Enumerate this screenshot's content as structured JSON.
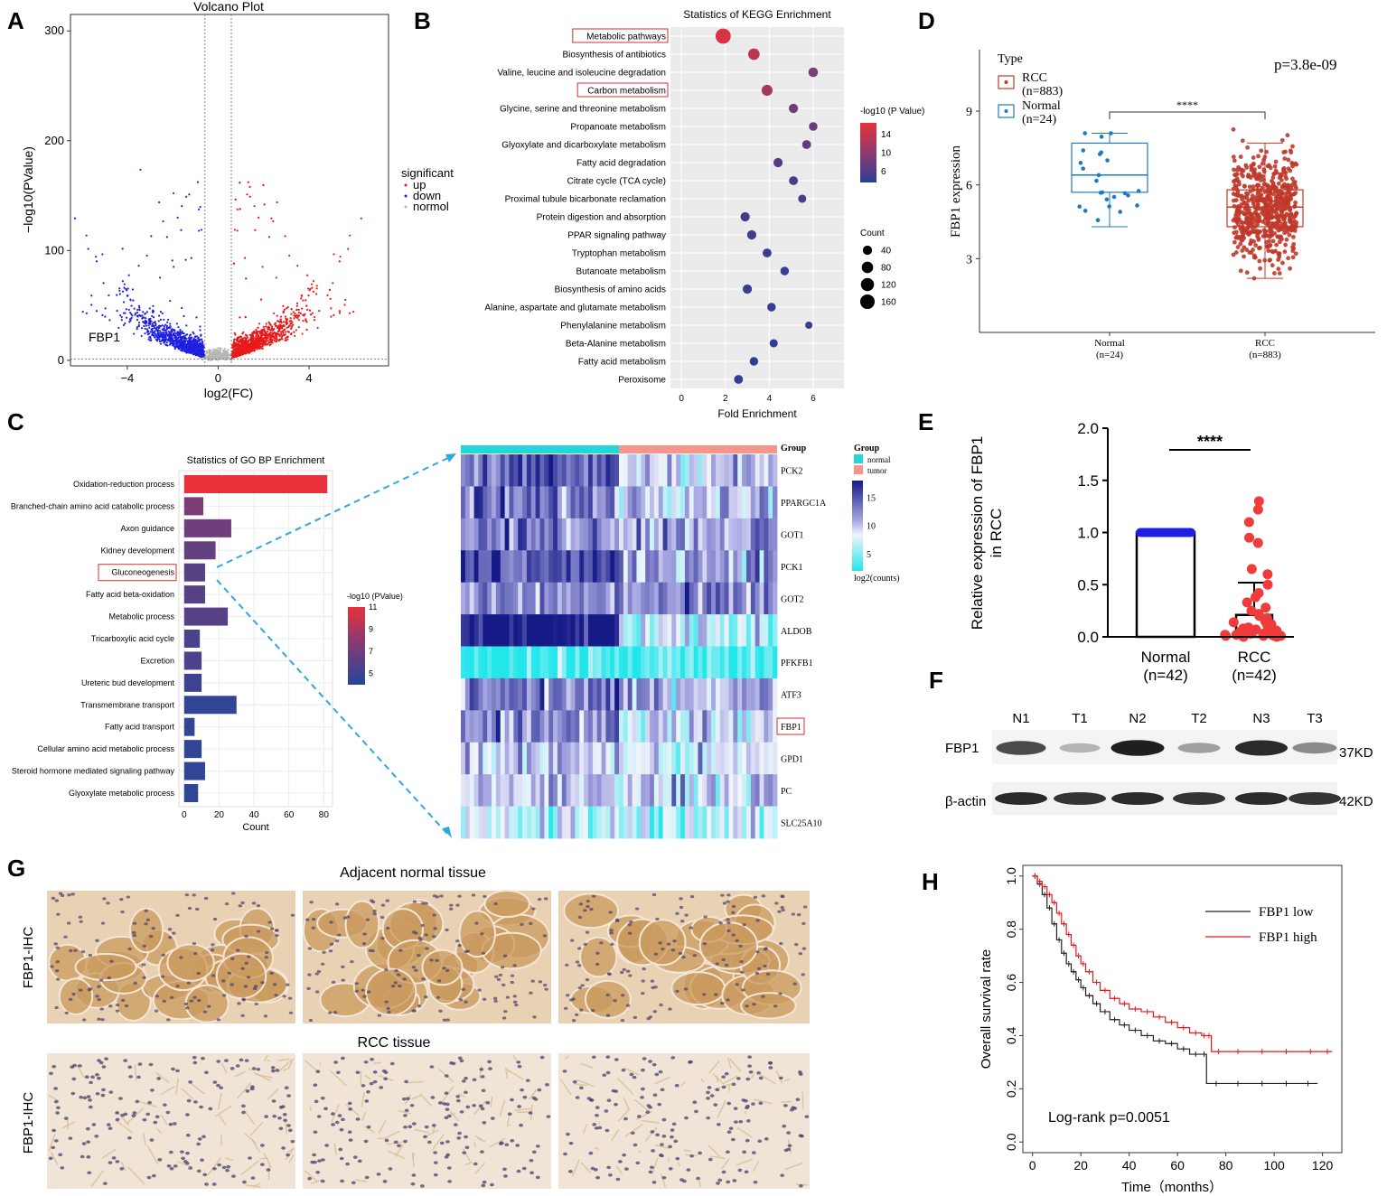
{
  "panels": {
    "A": "A",
    "B": "B",
    "C": "C",
    "D": "D",
    "E": "E",
    "F": "F",
    "G": "G",
    "H": "H"
  },
  "chart_data": [
    {
      "panel": "A",
      "type": "scatter",
      "title": "Volcano Plot",
      "xlabel": "log2(FC)",
      "ylabel": "−log10(PValue)",
      "xlim": [
        -6.5,
        7.5
      ],
      "ylim": [
        -5,
        315
      ],
      "xticks": [
        "−4",
        "0",
        "4"
      ],
      "xtick_values": [
        -4,
        0,
        4
      ],
      "yticks": [
        "0",
        "100",
        "200",
        "300"
      ],
      "ytick_values": [
        0,
        100,
        200,
        300
      ],
      "fc_threshold": 0.58,
      "legend_title": "significant",
      "legend": [
        "up",
        "down",
        "normol"
      ],
      "colors": {
        "up": "#e8191b",
        "down": "#1f1fe0",
        "normol": "#b8b8b8"
      },
      "annotation": "FBP1",
      "up_points_count": 1150,
      "down_points_count": 950,
      "normol_points_count": 400
    },
    {
      "panel": "B",
      "type": "scatter",
      "title": "Statistics of KEGG Enrichment",
      "xlabel": "Fold Enrichment",
      "xlim": [
        -0.5,
        7.4
      ],
      "xticks": [
        "0",
        "2",
        "4",
        "6"
      ],
      "xtick_values": [
        0,
        2,
        4,
        6
      ],
      "color_title": "-log10 (P Value)",
      "color_ticks": [
        "14",
        "10",
        "6"
      ],
      "color_tick_values": [
        14,
        10,
        6
      ],
      "color_range": [
        3.5,
        16.5
      ],
      "size_title": "Count",
      "size_ticks": [
        "40",
        "80",
        "120",
        "160"
      ],
      "size_tick_values": [
        40,
        80,
        120,
        160
      ],
      "terms": [
        "Metabolic pathways",
        "Biosynthesis of antibiotics",
        "Valine, leucine and isoleucine degradation",
        "Carbon metabolism",
        "Glycine, serine and threonine metabolism",
        "Propanoate metabolism",
        "Glyoxylate and dicarboxylate metabolism",
        "Fatty acid degradation",
        "Citrate cycle (TCA cycle)",
        "Proximal tubule bicarbonate reclamation",
        "Protein digestion and absorption",
        "PPAR signaling pathway",
        "Tryptophan metabolism",
        "Butanoate metabolism",
        "Biosynthesis of amino acids",
        "Alanine, aspartate and glutamate metabolism",
        "Phenylalanine metabolism",
        "Beta-Alanine metabolism",
        "Fatty acid metabolism",
        "Peroxisome"
      ],
      "fold_enrichment": [
        1.9,
        3.3,
        6.0,
        3.9,
        5.1,
        6.0,
        5.7,
        4.4,
        5.1,
        5.5,
        2.9,
        3.2,
        3.9,
        4.7,
        3.0,
        4.1,
        5.8,
        4.2,
        3.3,
        2.6
      ],
      "neg_log10_p": [
        15.5,
        13.5,
        9.0,
        12.0,
        8.0,
        7.5,
        7.0,
        6.5,
        6.0,
        5.5,
        5.0,
        4.8,
        4.7,
        4.5,
        4.5,
        4.3,
        4.2,
        4.0,
        4.0,
        3.8
      ],
      "count": [
        180,
        80,
        45,
        70,
        40,
        30,
        35,
        40,
        35,
        25,
        40,
        40,
        35,
        30,
        40,
        30,
        15,
        25,
        30,
        35
      ],
      "highlighted": [
        "Metabolic pathways",
        "Carbon metabolism"
      ]
    },
    {
      "panel": "C-left",
      "type": "bar",
      "title": "Statistics of GO BP Enrichment",
      "xlabel": "Count",
      "xlim": [
        -3,
        85
      ],
      "xticks": [
        "0",
        "20",
        "40",
        "60",
        "80"
      ],
      "xtick_values": [
        0,
        20,
        40,
        60,
        80
      ],
      "color_title": "-log10 (PValue)",
      "color_ticks": [
        "11",
        "9",
        "7",
        "5"
      ],
      "color_tick_values": [
        11,
        9,
        7,
        5
      ],
      "color_range": [
        4,
        11
      ],
      "categories": [
        "Oxidation-reduction process",
        "Branched-chain amino acid catabolic process",
        "Axon guidance",
        "Kidney development",
        "Gluconeogenesis",
        "Fatty acid beta-oxidation",
        "Metabolic process",
        "Tricarboxylic acid cycle",
        "Excretion",
        "Ureteric bud development",
        "Transmembrane transport",
        "Fatty acid transport",
        "Cellular amino acid metabolic process",
        "Steroid hormone mediated signaling pathway",
        "Glyoxylate metabolic process"
      ],
      "values": [
        82,
        11,
        27,
        18,
        12,
        12,
        25,
        9,
        10,
        10,
        30,
        6,
        10,
        12,
        8
      ],
      "neg_log10_p": [
        11,
        7.5,
        7,
        6.5,
        6,
        6,
        6,
        5.5,
        5.5,
        5,
        4.5,
        4.5,
        4.5,
        4.5,
        4.5
      ],
      "highlighted": [
        "Gluconeogenesis"
      ]
    },
    {
      "panel": "C-right",
      "type": "heatmap",
      "group_label": "Group",
      "legend_title": "Group",
      "groups": [
        "normal",
        "tumor"
      ],
      "group_colors": {
        "normal": "#22d6dc",
        "tumor": "#f7958b"
      },
      "normal_columns": 36,
      "tumor_columns": 36,
      "genes": [
        "PCK2",
        "PPARGC1A",
        "GOT1",
        "PCK1",
        "GOT2",
        "ALDOB",
        "PFKFB1",
        "ATF3",
        "FBP1",
        "GPD1",
        "PC",
        "SLC25A10"
      ],
      "normal_level": [
        14,
        13,
        13,
        15,
        12,
        18,
        3,
        13,
        13,
        10,
        10,
        7
      ],
      "tumor_level": [
        10,
        11,
        12,
        12,
        12,
        7,
        3,
        11,
        9,
        8,
        10,
        7
      ],
      "color_ticks": [
        "15",
        "10",
        "5"
      ],
      "color_tick_values": [
        15,
        10,
        5
      ],
      "color_range": [
        2,
        18
      ],
      "color_label": "log2(counts)",
      "highlighted": [
        "FBP1"
      ]
    },
    {
      "panel": "D",
      "type": "box",
      "ylabel": "FBP1 expression",
      "ylim": [
        0,
        11.5
      ],
      "yticks": [
        "3",
        "6",
        "9"
      ],
      "ytick_values": [
        3,
        6,
        9
      ],
      "categories": [
        "Normal\n(n=24)",
        "RCC\n(n=883)"
      ],
      "category_lines": [
        [
          "Normal",
          "(n=24)"
        ],
        [
          "RCC",
          "(n=883)"
        ]
      ],
      "legend_title": "Type",
      "legend": [
        [
          "RCC",
          "(n=883)"
        ],
        [
          "Normal",
          "(n=24)"
        ]
      ],
      "pvalue": "p=3.8e-09",
      "significance": "****",
      "colors": {
        "Normal": "#1f7bc1",
        "RCC": "#c0392b"
      },
      "series": [
        {
          "name": "Normal",
          "n": 24,
          "q1": 5.7,
          "median": 6.4,
          "q3": 7.7,
          "whisker_low": 4.3,
          "whisker_high": 8.1
        },
        {
          "name": "RCC",
          "n": 883,
          "q1": 4.3,
          "median": 5.1,
          "q3": 5.8,
          "whisker_low": 2.2,
          "whisker_high": 7.7
        }
      ]
    },
    {
      "panel": "E",
      "type": "bar",
      "ylabel": "Relative expression of FBP1\nin RCC",
      "ylabel_lines": [
        "Relative expression of FBP1",
        "in RCC"
      ],
      "ylim": [
        0,
        2.0
      ],
      "yticks": [
        "0.0",
        "0.5",
        "1.0",
        "1.5",
        "2.0"
      ],
      "ytick_values": [
        0,
        0.5,
        1.0,
        1.5,
        2.0
      ],
      "categories": [
        "Normal\n(n=42)",
        "RCC\n(n=42)"
      ],
      "category_lines": [
        [
          "Normal",
          "(n=42)"
        ],
        [
          "RCC",
          "(n=42)"
        ]
      ],
      "values": [
        1.0,
        0.21
      ],
      "sd": [
        0,
        0.31
      ],
      "significance": "****",
      "colors": {
        "Normal": "#1f1fe0",
        "RCC": "#ef3b3b"
      },
      "rcc_points": [
        1.3,
        1.22,
        1.1,
        0.95,
        0.9,
        0.65,
        0.6,
        0.5,
        0.42,
        0.38,
        0.33,
        0.28,
        0.25,
        0.22,
        0.2,
        0.18,
        0.15,
        0.14,
        0.12,
        0.11,
        0.1,
        0.09,
        0.08,
        0.07,
        0.06,
        0.06,
        0.05,
        0.05,
        0.04,
        0.04,
        0.03,
        0.03,
        0.03,
        0.02,
        0.02,
        0.02,
        0.01,
        0.01,
        0.01,
        0.01,
        0.0,
        0.0
      ]
    },
    {
      "panel": "H",
      "type": "line",
      "xlabel": "Time（months）",
      "ylabel": "Overall survival rate",
      "xlim": [
        -4,
        128
      ],
      "ylim": [
        -0.04,
        1.04
      ],
      "xticks": [
        "0",
        "20",
        "40",
        "60",
        "80",
        "100",
        "120"
      ],
      "xtick_values": [
        0,
        20,
        40,
        60,
        80,
        100,
        120
      ],
      "yticks": [
        "0.0",
        "0.2",
        "0.4",
        "0.6",
        "0.8",
        "1.0"
      ],
      "ytick_values": [
        0,
        0.2,
        0.4,
        0.6,
        0.8,
        1.0
      ],
      "annotation": "Log-rank p=0.0051",
      "series": [
        {
          "name": "FBP1 low",
          "color": "#222222",
          "x": [
            0,
            2,
            4,
            6,
            8,
            10,
            12,
            14,
            16,
            18,
            20,
            22,
            25,
            28,
            32,
            36,
            40,
            45,
            50,
            55,
            60,
            65,
            70,
            72,
            80,
            90,
            100,
            110,
            118
          ],
          "y": [
            1.0,
            0.97,
            0.93,
            0.88,
            0.82,
            0.76,
            0.71,
            0.67,
            0.64,
            0.61,
            0.58,
            0.55,
            0.52,
            0.49,
            0.46,
            0.44,
            0.42,
            0.4,
            0.38,
            0.37,
            0.35,
            0.33,
            0.33,
            0.22,
            0.22,
            0.22,
            0.22,
            0.22,
            0.22
          ]
        },
        {
          "name": "FBP1 high",
          "color": "#e8191b",
          "x": [
            0,
            2,
            4,
            6,
            8,
            10,
            12,
            14,
            16,
            18,
            20,
            22,
            25,
            28,
            32,
            36,
            40,
            45,
            50,
            55,
            60,
            65,
            70,
            72,
            74,
            80,
            90,
            100,
            110,
            120,
            124
          ],
          "y": [
            1.0,
            0.98,
            0.96,
            0.93,
            0.9,
            0.86,
            0.82,
            0.78,
            0.74,
            0.7,
            0.67,
            0.64,
            0.6,
            0.57,
            0.54,
            0.52,
            0.5,
            0.49,
            0.47,
            0.45,
            0.43,
            0.41,
            0.4,
            0.4,
            0.34,
            0.34,
            0.34,
            0.34,
            0.34,
            0.34,
            0.34
          ]
        }
      ]
    }
  ],
  "western_blot": {
    "lanes": [
      "N1",
      "T1",
      "N2",
      "T2",
      "N3",
      "T3"
    ],
    "rows": [
      {
        "protein": "FBP1",
        "size": "37KD",
        "intensity": [
          0.75,
          0.25,
          0.95,
          0.35,
          0.9,
          0.45
        ]
      },
      {
        "protein": "β-actin",
        "size": "42KD",
        "intensity": [
          0.9,
          0.85,
          0.9,
          0.85,
          0.9,
          0.85
        ]
      }
    ]
  },
  "ihc": {
    "top_title": "Adjacent normal tissue",
    "bottom_title": "RCC tissue",
    "row_label": "FBP1-IHC",
    "colors": {
      "normal_bg": "#e9d2b4",
      "normal_cell": "#c99a5e",
      "nucleus": "#4a3f6b",
      "rcc_bg": "#efe4d6",
      "rcc_cell": "#d8b68e"
    }
  }
}
